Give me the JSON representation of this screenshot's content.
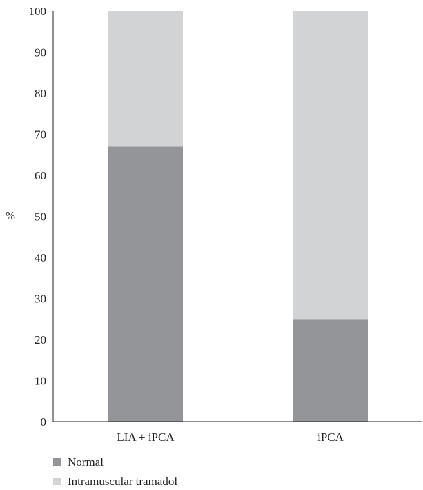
{
  "chart_data": {
    "type": "bar",
    "stacked": true,
    "categories": [
      "LIA + iPCA",
      "iPCA"
    ],
    "series": [
      {
        "name": "Normal",
        "values": [
          67,
          25
        ],
        "color": "#939598"
      },
      {
        "name": "Intramuscular tramadol",
        "values": [
          33,
          75
        ],
        "color": "#d1d3d4"
      }
    ],
    "title": "",
    "xlabel": "",
    "ylabel": "%",
    "ylim": [
      0,
      100
    ],
    "yticks": [
      0,
      10,
      20,
      30,
      40,
      50,
      60,
      70,
      80,
      90,
      100
    ],
    "grid": false,
    "legend": "bottom-left"
  }
}
